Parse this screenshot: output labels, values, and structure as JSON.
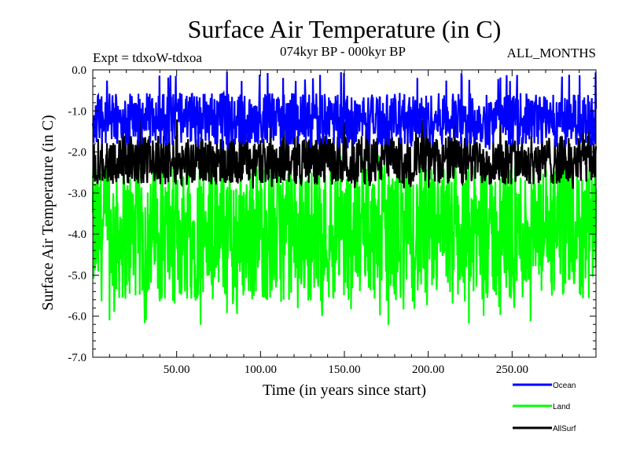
{
  "chart_data": {
    "type": "line",
    "title": "Surface Air Temperature (in C)",
    "subtitle_left": "Expt = tdxoW-tdxoa",
    "subtitle_center": "074kyr BP - 000kyr BP",
    "subtitle_right": "ALL_MONTHS",
    "xlabel": "Time (in years since start)",
    "ylabel": "Surface Air Temperature (in C)",
    "xlim": [
      0,
      300
    ],
    "ylim": [
      -7.0,
      0.0
    ],
    "x_tick_labels": [
      "50.00",
      "100.00",
      "150.00",
      "200.00",
      "250.00"
    ],
    "y_tick_labels": [
      "0.0",
      "-1.0",
      "-2.0",
      "-3.0",
      "-4.0",
      "-5.0",
      "-6.0",
      "-7.0"
    ],
    "grid": false,
    "legend_position": "bottom-right",
    "series": [
      {
        "name": "Ocean",
        "color": "#0000ff",
        "mean": -1.2,
        "min": -1.95,
        "max": -0.05
      },
      {
        "name": "Land",
        "color": "#00ff00",
        "mean": -4.0,
        "min": -6.25,
        "max": -2.05
      },
      {
        "name": "AllSurf",
        "color": "#000000",
        "mean": -2.2,
        "min": -2.9,
        "max": -1.1
      }
    ]
  }
}
